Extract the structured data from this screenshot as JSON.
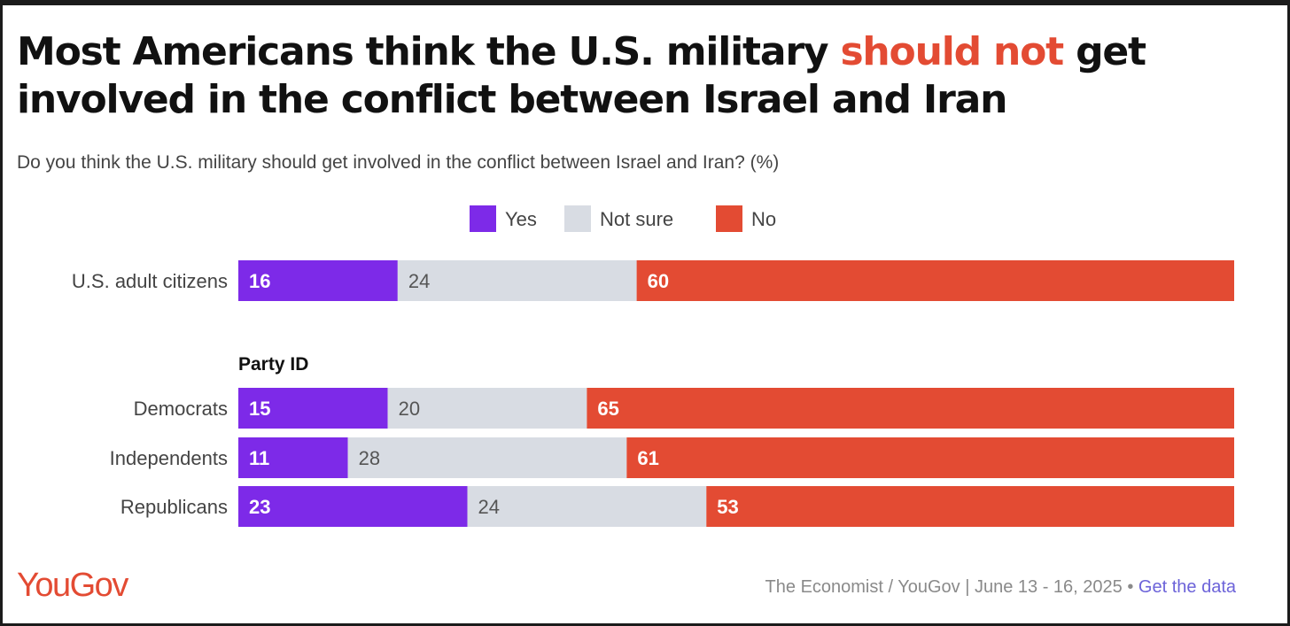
{
  "title": {
    "part1": "Most Americans think the U.S. military ",
    "highlight": "should not",
    "part2": " get involved in the conflict between Israel and Iran"
  },
  "subtitle": "Do you think the U.S. military should get involved in the conflict between Israel and Iran? (%)",
  "colors": {
    "yes": "#7d2ae8",
    "not_sure": "#d8dce3",
    "no": "#e34b33",
    "brand": "#e34b33",
    "link": "#6c63d9"
  },
  "footer": {
    "logo": "YouGov",
    "source": "The Economist / YouGov | June 13 - 16, 2025",
    "separator": "•",
    "link": "Get the data"
  },
  "chart_data": {
    "type": "bar",
    "orientation": "horizontal",
    "stacked": true,
    "xlim": [
      0,
      100
    ],
    "legend": [
      "Yes",
      "Not sure",
      "No"
    ],
    "legend_position": "top-center",
    "group_label": "Party ID",
    "categories": [
      "U.S. adult citizens",
      "Democrats",
      "Independents",
      "Republicans"
    ],
    "series": [
      {
        "name": "Yes",
        "values": [
          16,
          15,
          11,
          23
        ]
      },
      {
        "name": "Not sure",
        "values": [
          24,
          20,
          28,
          24
        ]
      },
      {
        "name": "No",
        "values": [
          60,
          65,
          61,
          53
        ]
      }
    ]
  }
}
